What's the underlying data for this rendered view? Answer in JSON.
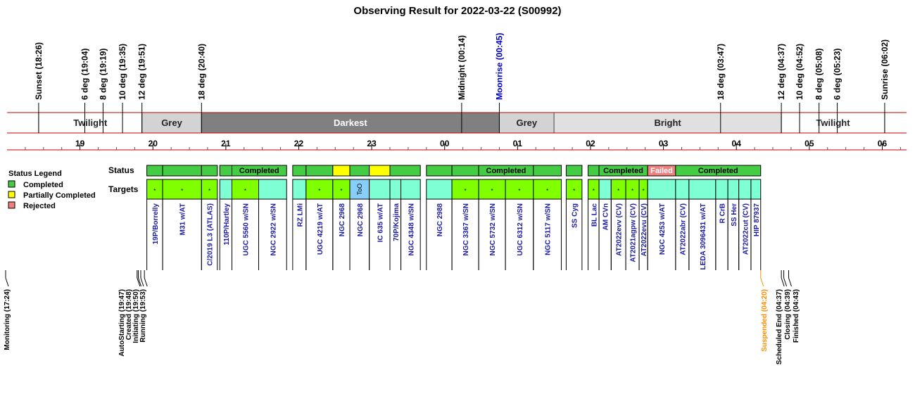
{
  "chart_data": {
    "type": "timeline",
    "title": "Observing Result for 2022-03-22 (S00992)",
    "colors": {
      "completed": "#44cc44",
      "partial": "#ffff00",
      "rejected": "#f08080",
      "target": "#7fffd4",
      "target_alt": "#7fff00",
      "too": "#87cefa",
      "twilight": "#ffffff",
      "grey": "#d3d3d3",
      "darkest": "#808080",
      "bright": "#e0e0e0",
      "accent_red": "#cc0000",
      "moon_blue": "#0000cc",
      "link_blue": "#1a1aa6",
      "suspended_orange": "#ff8c00"
    },
    "events_top": [
      {
        "label": "Sunset (18:26)",
        "time": "18:26"
      },
      {
        "label": "6 deg (19:04)",
        "time": "19:04"
      },
      {
        "label": "8 deg (19:19)",
        "time": "19:19"
      },
      {
        "label": "10 deg (19:35)",
        "time": "19:35"
      },
      {
        "label": "12 deg (19:51)",
        "time": "19:51"
      },
      {
        "label": "18 deg (20:40)",
        "time": "20:40"
      },
      {
        "label": "Midnight (00:14)",
        "time": "24:14"
      },
      {
        "label": "Moonrise (00:45)",
        "time": "24:45",
        "color": "moon"
      },
      {
        "label": "18 deg (03:47)",
        "time": "27:47"
      },
      {
        "label": "12 deg (04:37)",
        "time": "28:37"
      },
      {
        "label": "10 deg (04:52)",
        "time": "28:52"
      },
      {
        "label": "8 deg (05:08)",
        "time": "29:08"
      },
      {
        "label": "6 deg (05:23)",
        "time": "29:23"
      },
      {
        "label": "Sunrise (06:02)",
        "time": "30:02"
      }
    ],
    "sky_bands": [
      {
        "label": "Twilight",
        "start": "18:26",
        "end": "19:51",
        "kind": "twilight"
      },
      {
        "label": "Grey",
        "start": "19:51",
        "end": "20:40",
        "kind": "grey"
      },
      {
        "label": "Darkest",
        "start": "20:40",
        "end": "24:45",
        "kind": "darkest"
      },
      {
        "label": "Grey",
        "start": "24:45",
        "end": "25:30",
        "kind": "grey"
      },
      {
        "label": "Bright",
        "start": "25:30",
        "end": "28:37",
        "kind": "bright"
      },
      {
        "label": "Twilight",
        "start": "28:37",
        "end": "30:02",
        "kind": "twilight"
      }
    ],
    "hour_ticks": [
      "19",
      "20",
      "21",
      "22",
      "23",
      "00",
      "01",
      "02",
      "03",
      "04",
      "05",
      "06"
    ],
    "axis_range": [
      "18:00",
      "30:20"
    ],
    "legend": {
      "title": "Status Legend",
      "items": [
        {
          "label": "Completed",
          "kind": "completed"
        },
        {
          "label": "Partially Completed",
          "kind": "partial"
        },
        {
          "label": "Rejected",
          "kind": "rejected"
        }
      ]
    },
    "row_labels": {
      "status": "Status",
      "targets": "Targets"
    },
    "status_segments": [
      {
        "start": "19:55",
        "end": "20:08",
        "kind": "completed",
        "label": ""
      },
      {
        "start": "20:08",
        "end": "20:40",
        "kind": "completed",
        "label": ""
      },
      {
        "start": "20:40",
        "end": "20:53",
        "kind": "completed",
        "label": ""
      },
      {
        "start": "20:55",
        "end": "21:05",
        "kind": "completed",
        "label": ""
      },
      {
        "start": "21:05",
        "end": "21:50",
        "kind": "completed",
        "label": "Completed"
      },
      {
        "start": "21:55",
        "end": "22:06",
        "kind": "completed",
        "label": ""
      },
      {
        "start": "22:06",
        "end": "22:28",
        "kind": "completed",
        "label": ""
      },
      {
        "start": "22:28",
        "end": "22:42",
        "kind": "partial",
        "label": ""
      },
      {
        "start": "22:42",
        "end": "22:58",
        "kind": "completed",
        "label": ""
      },
      {
        "start": "22:58",
        "end": "23:15",
        "kind": "partial",
        "label": ""
      },
      {
        "start": "23:15",
        "end": "23:40",
        "kind": "completed",
        "label": ""
      },
      {
        "start": "23:45",
        "end": "24:06",
        "kind": "completed",
        "label": ""
      },
      {
        "start": "24:06",
        "end": "24:28",
        "kind": "completed",
        "label": ""
      },
      {
        "start": "24:28",
        "end": "25:13",
        "kind": "completed",
        "label": "Completed"
      },
      {
        "start": "25:13",
        "end": "25:36",
        "kind": "completed",
        "label": ""
      },
      {
        "start": "25:40",
        "end": "25:53",
        "kind": "completed",
        "label": ""
      },
      {
        "start": "25:58",
        "end": "26:07",
        "kind": "completed",
        "label": ""
      },
      {
        "start": "26:07",
        "end": "26:47",
        "kind": "completed",
        "label": "Completed"
      },
      {
        "start": "26:47",
        "end": "27:10",
        "kind": "rejected",
        "label": "Failed"
      },
      {
        "start": "27:10",
        "end": "28:20",
        "kind": "completed",
        "label": "Completed"
      }
    ],
    "targets": [
      {
        "name": "19P/Borrelly",
        "start": "19:55",
        "end": "20:08",
        "kind": "target_alt",
        "mark": "*"
      },
      {
        "name": "M31 w/AT",
        "start": "20:08",
        "end": "20:40",
        "kind": "target_alt",
        "mark": "*"
      },
      {
        "name": "C/2019 L3 (ATLAS)",
        "start": "20:40",
        "end": "20:53",
        "kind": "target_alt",
        "mark": "*"
      },
      {
        "name": "110P/Hartley",
        "start": "20:55",
        "end": "21:05",
        "kind": "target",
        "mark": ""
      },
      {
        "name": "UGC 5560 w/SN",
        "start": "21:05",
        "end": "21:27",
        "kind": "target_alt",
        "mark": "*"
      },
      {
        "name": "NGC 2922 w/SN",
        "start": "21:27",
        "end": "21:50",
        "kind": "target",
        "mark": ""
      },
      {
        "name": "RZ LMi",
        "start": "21:55",
        "end": "22:06",
        "kind": "target",
        "mark": ""
      },
      {
        "name": "UGC 4219 w/AT",
        "start": "22:06",
        "end": "22:28",
        "kind": "target_alt",
        "mark": "*"
      },
      {
        "name": "NGC 2968",
        "start": "22:28",
        "end": "22:42",
        "kind": "target_alt",
        "mark": "*"
      },
      {
        "name": "NGC 2968",
        "start": "22:42",
        "end": "22:58",
        "kind": "too",
        "mark": "ToO"
      },
      {
        "name": "IC 635 w/AT",
        "start": "22:58",
        "end": "23:15",
        "kind": "target",
        "mark": ""
      },
      {
        "name": "70P/Kojima",
        "start": "23:15",
        "end": "23:24",
        "kind": "target",
        "mark": ""
      },
      {
        "name": "NGC 4348 w/SN",
        "start": "23:24",
        "end": "23:40",
        "kind": "target",
        "mark": ""
      },
      {
        "name": "NGC 2988",
        "start": "23:45",
        "end": "24:06",
        "kind": "target",
        "mark": ""
      },
      {
        "name": "NGC 3367 w/SN",
        "start": "24:06",
        "end": "24:28",
        "kind": "target_alt",
        "mark": "*"
      },
      {
        "name": "NGC 5732 w/SN",
        "start": "24:28",
        "end": "24:50",
        "kind": "target_alt",
        "mark": "*"
      },
      {
        "name": "UGC 6312 w/SN",
        "start": "24:50",
        "end": "25:13",
        "kind": "target_alt",
        "mark": "*"
      },
      {
        "name": "NGC 5117 w/SN",
        "start": "25:13",
        "end": "25:36",
        "kind": "target_alt",
        "mark": "*"
      },
      {
        "name": "SS Cyg",
        "start": "25:40",
        "end": "25:53",
        "kind": "target_alt",
        "mark": "*"
      },
      {
        "name": "BL Lac",
        "start": "25:58",
        "end": "26:07",
        "kind": "target_alt",
        "mark": "*"
      },
      {
        "name": "AM CVn",
        "start": "26:07",
        "end": "26:17",
        "kind": "target",
        "mark": ""
      },
      {
        "name": "AT2022evv (CV)",
        "start": "26:17",
        "end": "26:29",
        "kind": "target_alt",
        "mark": "*"
      },
      {
        "name": "AT2021agpw (CV)",
        "start": "26:29",
        "end": "26:40",
        "kind": "target_alt",
        "mark": "*"
      },
      {
        "name": "AT2022evu (CV)",
        "start": "26:40",
        "end": "26:47",
        "kind": "target_alt",
        "mark": "*"
      },
      {
        "name": "NGC 4253 w/AT",
        "start": "26:47",
        "end": "27:10",
        "kind": "target",
        "mark": ""
      },
      {
        "name": "AT2022abr (CV)",
        "start": "27:10",
        "end": "27:21",
        "kind": "target",
        "mark": ""
      },
      {
        "name": "LEDA 3096431 w/AT",
        "start": "27:21",
        "end": "27:43",
        "kind": "target",
        "mark": ""
      },
      {
        "name": "R CrB",
        "start": "27:43",
        "end": "27:53",
        "kind": "target",
        "mark": ""
      },
      {
        "name": "SS Her",
        "start": "27:53",
        "end": "28:02",
        "kind": "target",
        "mark": ""
      },
      {
        "name": "AT2022cut (CV)",
        "start": "28:02",
        "end": "28:12",
        "kind": "target",
        "mark": ""
      },
      {
        "name": "HIP 87937",
        "start": "28:12",
        "end": "28:20",
        "kind": "target",
        "mark": ""
      }
    ],
    "events_bottom": [
      {
        "label": "Monitoring (17:24)",
        "time": "17:24",
        "color": "black"
      },
      {
        "label": "AutoStarting (19:47)",
        "time": "19:47",
        "color": "black"
      },
      {
        "label": "Created (19:48)",
        "time": "19:48",
        "color": "black"
      },
      {
        "label": "Initiating (19:50)",
        "time": "19:50",
        "color": "black"
      },
      {
        "label": "Running (19:53)",
        "time": "19:53",
        "color": "black"
      },
      {
        "label": "Suspended (04:20)",
        "time": "28:20",
        "color": "orange"
      },
      {
        "label": "Scheduled End (04:37)",
        "time": "28:37",
        "color": "black"
      },
      {
        "label": "Closing (04:39)",
        "time": "28:39",
        "color": "black"
      },
      {
        "label": "Finished (04:43)",
        "time": "28:43",
        "color": "black"
      }
    ]
  }
}
